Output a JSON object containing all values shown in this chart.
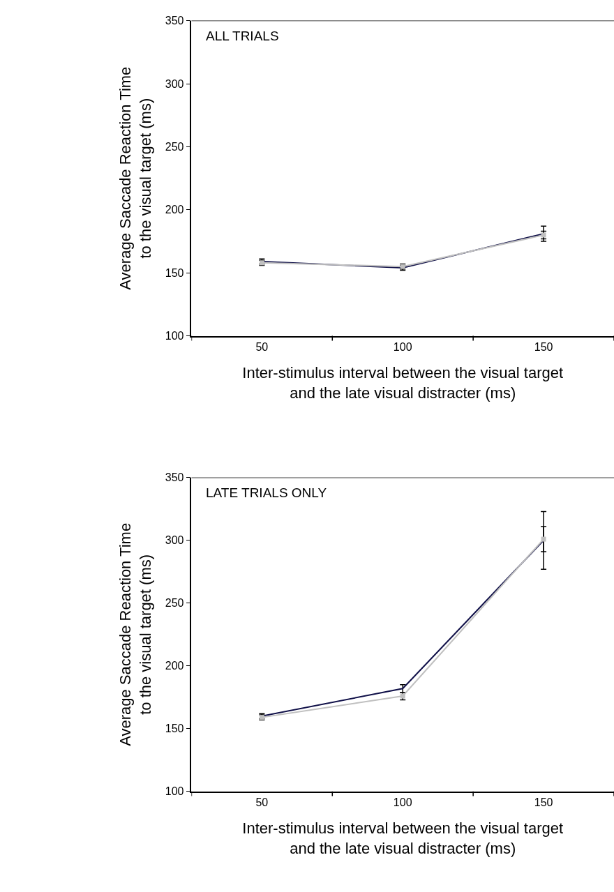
{
  "chart_data": [
    {
      "type": "line",
      "title": "ALL TRIALS",
      "xlabel": "Inter-stimulus interval between the visual target\nand the late visual distracter (ms)",
      "ylabel": "Average Saccade Reaction Time\nto the visual target (ms)",
      "categories": [
        "50",
        "100",
        "150"
      ],
      "ylim": [
        100,
        350
      ],
      "yticks": [
        100,
        150,
        200,
        250,
        300,
        350
      ],
      "series": [
        {
          "color": "#101048",
          "values": [
            159,
            154,
            181
          ],
          "errors": [
            2,
            2,
            6
          ]
        },
        {
          "color": "#c0c0c0",
          "values": [
            158,
            155,
            180
          ],
          "errors": [
            2,
            2,
            3
          ],
          "marker": "square"
        }
      ]
    },
    {
      "type": "line",
      "title": "LATE TRIALS ONLY",
      "xlabel": "Inter-stimulus interval between the visual target\nand the late visual distracter (ms)",
      "ylabel": "Average Saccade Reaction Time\nto the visual target (ms)",
      "categories": [
        "50",
        "100",
        "150"
      ],
      "ylim": [
        100,
        350
      ],
      "yticks": [
        100,
        150,
        200,
        250,
        300,
        350
      ],
      "series": [
        {
          "color": "#101048",
          "values": [
            160,
            182,
            300
          ],
          "errors": [
            2,
            3,
            23
          ]
        },
        {
          "color": "#c0c0c0",
          "values": [
            159,
            176,
            301
          ],
          "errors": [
            2,
            3,
            10
          ],
          "marker": "square"
        }
      ]
    }
  ]
}
